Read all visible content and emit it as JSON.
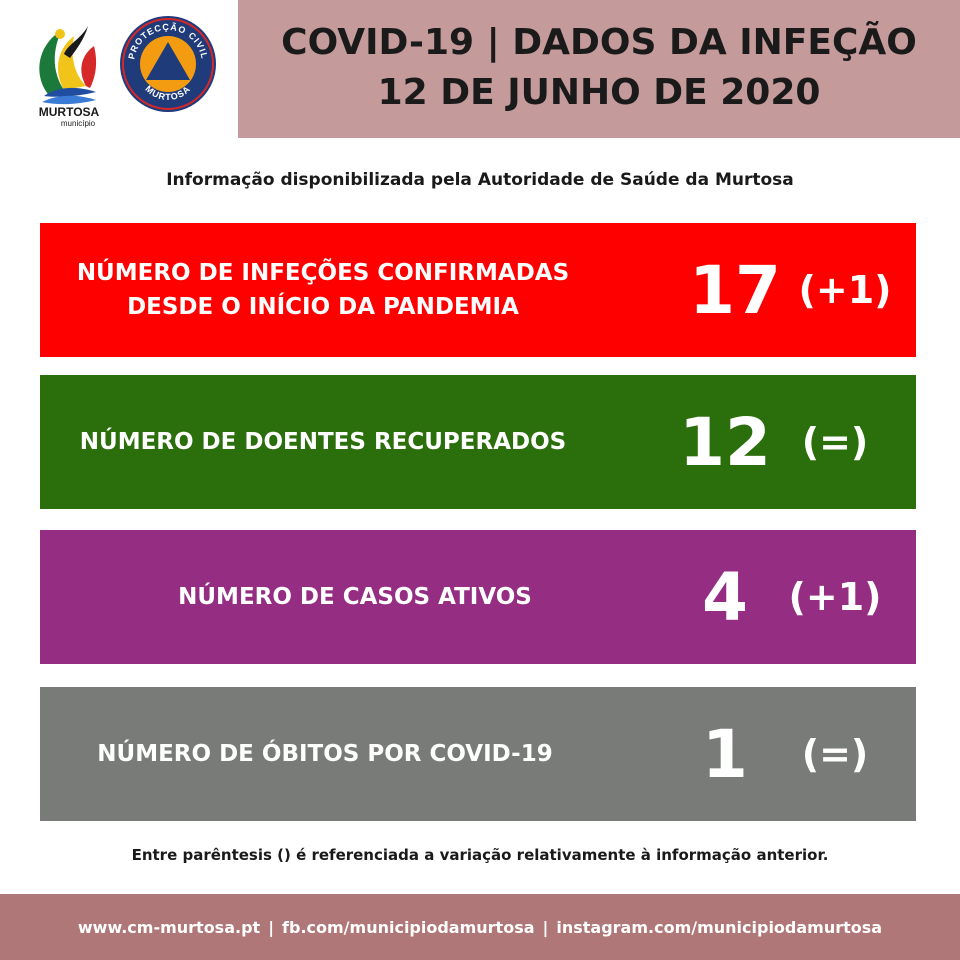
{
  "header": {
    "title_line1": "COVID-19 | DADOS DA INFEÇÃO",
    "title_line2": "12 DE JUNHO DE 2020"
  },
  "logos": {
    "murtosa": {
      "name": "MURTOSA",
      "sub": "município"
    },
    "protecao_civil": {
      "top_text": "PROTECÇÃO CIVIL",
      "bottom_text": "MURTOSA"
    }
  },
  "subtitle": "Informação disponibilizada pela Autoridade de Saúde da Murtosa",
  "panels": [
    {
      "label_line1": "NÚMERO DE INFEÇÕES CONFIRMADAS",
      "label_line2": "DESDE O INÍCIO DA PANDEMIA",
      "value": "17",
      "change": "(+1)",
      "color": "#ff0000"
    },
    {
      "label_line1": "NÚMERO DE DOENTES RECUPERADOS",
      "label_line2": "",
      "value": "12",
      "change": "(=)",
      "color": "#2b6e0c"
    },
    {
      "label_line1": "NÚMERO DE CASOS ATIVOS",
      "label_line2": "",
      "value": "4",
      "change": "(+1)",
      "color": "#952d83"
    },
    {
      "label_line1": "NÚMERO DE ÓBITOS POR COVID-19",
      "label_line2": "",
      "value": "1",
      "change": "(=)",
      "color": "#787b77"
    }
  ],
  "footnote": "Entre parêntesis () é referenciada a variação relativamente à informação anterior.",
  "footer": {
    "links": [
      "www.cm-murtosa.pt",
      "fb.com/municipiodamurtosa",
      "instagram.com/municipiodamurtosa"
    ],
    "separator": "|"
  }
}
